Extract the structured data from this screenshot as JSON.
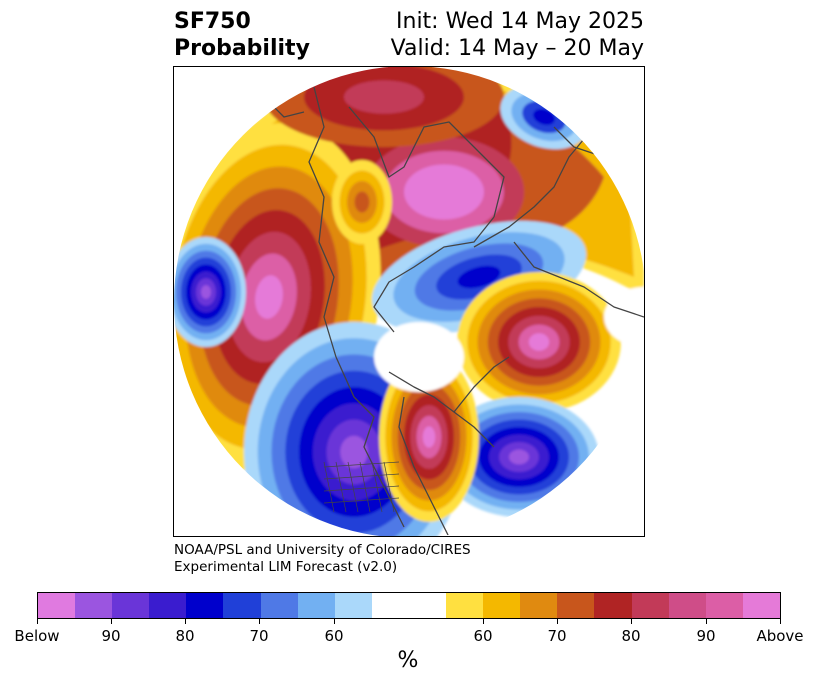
{
  "header": {
    "variable": "SF750",
    "product": "Probability",
    "init": "Init: Wed 14 May 2025",
    "valid": "Valid: 14 May – 20 May"
  },
  "credit": {
    "line1": "NOAA/PSL and University of Colorado/CIRES",
    "line2": "Experimental LIM Forecast (v2.0)"
  },
  "colorbar": {
    "colors": [
      "#e07ae0",
      "#9b55e0",
      "#6a35d8",
      "#3a1ccf",
      "#0000cc",
      "#2040d8",
      "#4f79e6",
      "#72b0f2",
      "#aad8fa",
      "#ffffff",
      "#ffffff",
      "#ffe040",
      "#f4b800",
      "#e08a10",
      "#c8561c",
      "#b02424",
      "#c23a58",
      "#cf4d88",
      "#dc5ea6",
      "#e57ad8"
    ],
    "tick_labels": [
      "Below",
      "90",
      "80",
      "70",
      "60",
      "60",
      "70",
      "80",
      "90",
      "Above"
    ],
    "unit": "%"
  },
  "map_palette": {
    "pink_light": "#e57ad8",
    "pink_mid": "#dc5ea6",
    "magenta": "#c23a58",
    "dark_red": "#b02424",
    "rust": "#c8561c",
    "orange": "#e08a10",
    "gold": "#f4b800",
    "yellow": "#ffe040",
    "pale_blue": "#aad8fa",
    "light_blue": "#72b0f2",
    "mid_blue": "#4f79e6",
    "blue": "#2040d8",
    "deep_blue": "#0000cc",
    "indigo": "#3a1ccf",
    "violet": "#6a35d8",
    "purple": "#9b55e0",
    "coast": "#444444"
  }
}
